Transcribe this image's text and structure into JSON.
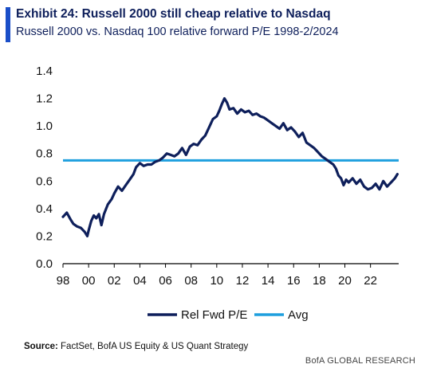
{
  "header": {
    "title": "Exhibit 24: Russell 2000 still cheap relative to Nasdaq",
    "subtitle": "Russell 2000 vs. Nasdaq 100 relative forward P/E 1998-2/2024"
  },
  "footer": {
    "source_label": "Source:",
    "source_text": " FactSet, BofA US Equity & US Quant Strategy",
    "credit": "BofA GLOBAL RESEARCH"
  },
  "colors": {
    "accent": "#1a4ec8",
    "series_line": "#0e1f5b",
    "avg_line": "#1f9fde"
  },
  "chart_data": {
    "type": "line",
    "title": "",
    "xlabel": "",
    "ylabel": "",
    "xlim": [
      1998,
      2024.2
    ],
    "ylim": [
      0,
      1.4
    ],
    "grid": false,
    "legend_position": "bottom-center",
    "x_tick_labels": [
      "98",
      "00",
      "02",
      "04",
      "06",
      "08",
      "10",
      "12",
      "14",
      "16",
      "18",
      "20",
      "22"
    ],
    "x_tick_values": [
      1998,
      2000,
      2002,
      2004,
      2006,
      2008,
      2010,
      2012,
      2014,
      2016,
      2018,
      2020,
      2022
    ],
    "y_tick_labels": [
      "0.0",
      "0.2",
      "0.4",
      "0.6",
      "0.8",
      "1.0",
      "1.2",
      "1.4"
    ],
    "y_tick_values": [
      0,
      0.2,
      0.4,
      0.6,
      0.8,
      1.0,
      1.2,
      1.4
    ],
    "series": [
      {
        "name": "Rel Fwd P/E",
        "x": [
          1998.0,
          1998.3,
          1998.6,
          1998.8,
          1999.1,
          1999.4,
          1999.7,
          1999.9,
          2000.0,
          2000.2,
          2000.4,
          2000.6,
          2000.8,
          2001.0,
          2001.2,
          2001.5,
          2001.8,
          2002.0,
          2002.3,
          2002.6,
          2002.9,
          2003.2,
          2003.5,
          2003.7,
          2004.0,
          2004.3,
          2004.6,
          2004.9,
          2005.2,
          2005.5,
          2005.8,
          2006.1,
          2006.4,
          2006.7,
          2007.0,
          2007.3,
          2007.6,
          2007.9,
          2008.2,
          2008.5,
          2008.8,
          2009.1,
          2009.4,
          2009.7,
          2010.0,
          2010.2,
          2010.4,
          2010.6,
          2010.8,
          2011.0,
          2011.3,
          2011.6,
          2011.9,
          2012.2,
          2012.5,
          2012.8,
          2013.1,
          2013.4,
          2013.7,
          2014.0,
          2014.3,
          2014.6,
          2014.9,
          2015.2,
          2015.5,
          2015.8,
          2016.1,
          2016.4,
          2016.7,
          2017.0,
          2017.3,
          2017.6,
          2017.9,
          2018.2,
          2018.5,
          2018.8,
          2019.1,
          2019.3,
          2019.5,
          2019.7,
          2019.9,
          2020.1,
          2020.3,
          2020.6,
          2020.9,
          2021.2,
          2021.5,
          2021.8,
          2022.1,
          2022.4,
          2022.7,
          2023.0,
          2023.3,
          2023.6,
          2023.9,
          2024.1
        ],
        "values": [
          0.34,
          0.37,
          0.32,
          0.29,
          0.27,
          0.26,
          0.23,
          0.2,
          0.24,
          0.31,
          0.35,
          0.33,
          0.36,
          0.28,
          0.36,
          0.43,
          0.47,
          0.51,
          0.56,
          0.53,
          0.57,
          0.61,
          0.65,
          0.7,
          0.73,
          0.71,
          0.72,
          0.72,
          0.74,
          0.75,
          0.77,
          0.8,
          0.79,
          0.78,
          0.8,
          0.84,
          0.79,
          0.85,
          0.87,
          0.86,
          0.9,
          0.93,
          0.99,
          1.05,
          1.07,
          1.11,
          1.16,
          1.2,
          1.17,
          1.12,
          1.13,
          1.09,
          1.12,
          1.1,
          1.11,
          1.08,
          1.09,
          1.07,
          1.06,
          1.04,
          1.02,
          1.0,
          0.98,
          1.02,
          0.97,
          0.99,
          0.96,
          0.92,
          0.95,
          0.88,
          0.86,
          0.84,
          0.81,
          0.78,
          0.76,
          0.74,
          0.72,
          0.69,
          0.64,
          0.62,
          0.57,
          0.61,
          0.59,
          0.62,
          0.58,
          0.61,
          0.56,
          0.54,
          0.55,
          0.58,
          0.54,
          0.6,
          0.56,
          0.59,
          0.62,
          0.65
        ]
      },
      {
        "name": "Avg",
        "x": [
          1998,
          2024.2
        ],
        "values": [
          0.75,
          0.75
        ]
      }
    ]
  }
}
